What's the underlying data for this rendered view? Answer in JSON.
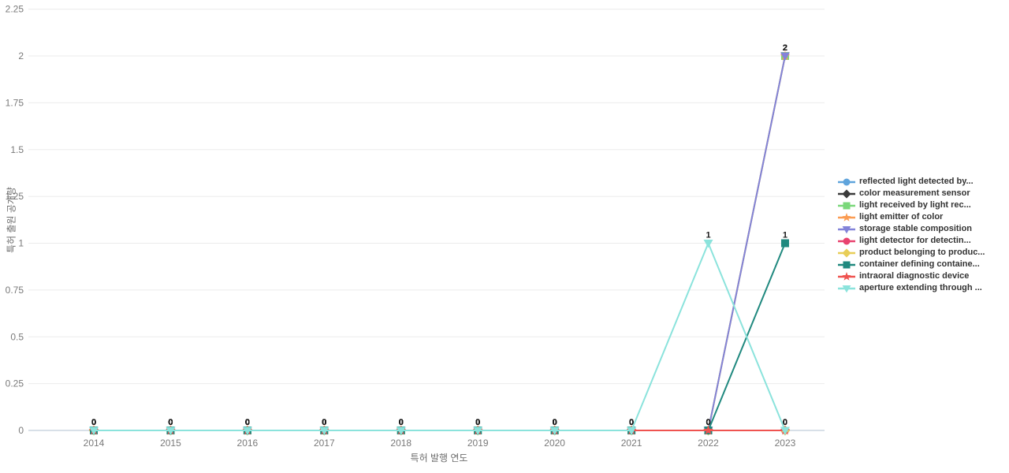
{
  "chart_data": {
    "type": "line",
    "title": "",
    "xlabel": "특허 발행 연도",
    "ylabel": "특허 출원 공개량",
    "x": [
      2014,
      2015,
      2016,
      2017,
      2018,
      2019,
      2020,
      2021,
      2022,
      2023
    ],
    "ylim": [
      0,
      2.25
    ],
    "y_ticks": [
      "0",
      "0.25",
      "0.5",
      "0.75",
      "1",
      "1.25",
      "1.5",
      "1.75",
      "2",
      "2.25"
    ],
    "grid": true,
    "legend_position": "right",
    "colors": {
      "grid_line": "#ebebeb",
      "zero_line": "#ccd6e0",
      "tick_label": "#7a7a7a",
      "value_label": "#1a1a1a"
    },
    "series": [
      {
        "name": "reflected light detected by...",
        "color": "#5fa4dc",
        "marker": "circle",
        "values": [
          0,
          0,
          0,
          0,
          0,
          0,
          0,
          0,
          0,
          0
        ]
      },
      {
        "name": "color measurement sensor",
        "color": "#3b3b3b",
        "marker": "diamond",
        "values": [
          0,
          0,
          0,
          0,
          0,
          0,
          0,
          0,
          0,
          0
        ]
      },
      {
        "name": "light received by light rec...",
        "color": "#7ad87a",
        "marker": "square",
        "values": [
          0,
          0,
          0,
          0,
          0,
          0,
          0,
          0,
          0,
          2
        ]
      },
      {
        "name": "light emitter of color",
        "color": "#fb9c52",
        "marker": "star",
        "values": [
          0,
          0,
          0,
          0,
          0,
          0,
          0,
          0,
          0,
          2
        ]
      },
      {
        "name": "storage stable composition",
        "color": "#8283d9",
        "marker": "triangle-down",
        "values": [
          0,
          0,
          0,
          0,
          0,
          0,
          0,
          0,
          0,
          2
        ]
      },
      {
        "name": "light detector for detectin...",
        "color": "#e8436f",
        "marker": "circle",
        "values": [
          0,
          0,
          0,
          0,
          0,
          0,
          0,
          0,
          0,
          0
        ]
      },
      {
        "name": "product belonging to produc...",
        "color": "#e8ce58",
        "marker": "diamond",
        "values": [
          0,
          0,
          0,
          0,
          0,
          0,
          0,
          0,
          0,
          0
        ]
      },
      {
        "name": "container defining containe...",
        "color": "#20897f",
        "marker": "square",
        "values": [
          0,
          0,
          0,
          0,
          0,
          0,
          0,
          0,
          0,
          1
        ]
      },
      {
        "name": "intraoral diagnostic device",
        "color": "#ef5350",
        "marker": "star",
        "values": [
          0,
          0,
          0,
          0,
          0,
          0,
          0,
          0,
          0,
          0
        ]
      },
      {
        "name": "aperture extending through ...",
        "color": "#8be3dc",
        "marker": "triangle-down",
        "values": [
          0,
          0,
          0,
          0,
          0,
          0,
          0,
          0,
          1,
          0
        ]
      }
    ]
  }
}
